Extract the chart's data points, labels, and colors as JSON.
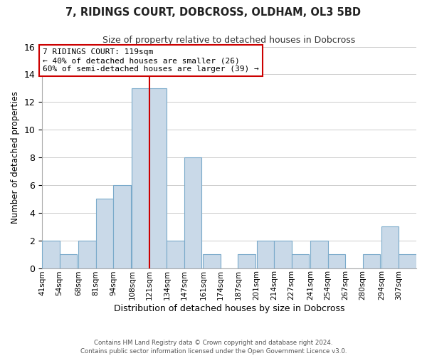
{
  "title": "7, RIDINGS COURT, DOBCROSS, OLDHAM, OL3 5BD",
  "subtitle": "Size of property relative to detached houses in Dobcross",
  "xlabel": "Distribution of detached houses by size in Dobcross",
  "ylabel": "Number of detached properties",
  "footer_line1": "Contains HM Land Registry data © Crown copyright and database right 2024.",
  "footer_line2": "Contains public sector information licensed under the Open Government Licence v3.0.",
  "bin_labels": [
    "41sqm",
    "54sqm",
    "68sqm",
    "81sqm",
    "94sqm",
    "108sqm",
    "121sqm",
    "134sqm",
    "147sqm",
    "161sqm",
    "174sqm",
    "187sqm",
    "201sqm",
    "214sqm",
    "227sqm",
    "241sqm",
    "254sqm",
    "267sqm",
    "280sqm",
    "294sqm",
    "307sqm"
  ],
  "bin_edges": [
    41,
    54,
    68,
    81,
    94,
    108,
    121,
    134,
    147,
    161,
    174,
    187,
    201,
    214,
    227,
    241,
    254,
    267,
    280,
    294,
    307
  ],
  "bar_heights": [
    2,
    1,
    2,
    5,
    6,
    13,
    13,
    2,
    8,
    1,
    0,
    1,
    2,
    2,
    1,
    2,
    1,
    0,
    1,
    3,
    1
  ],
  "bar_color": "#c9d9e8",
  "bar_edge_color": "#7aaaca",
  "property_line_x": 121,
  "property_line_color": "#cc0000",
  "annotation_title": "7 RIDINGS COURT: 119sqm",
  "annotation_line1": "← 40% of detached houses are smaller (26)",
  "annotation_line2": "60% of semi-detached houses are larger (39) →",
  "ylim": [
    0,
    16
  ],
  "yticks": [
    0,
    2,
    4,
    6,
    8,
    10,
    12,
    14,
    16
  ],
  "annotation_box_color": "#ffffff",
  "annotation_box_edge": "#cc0000",
  "grid_color": "#cccccc"
}
